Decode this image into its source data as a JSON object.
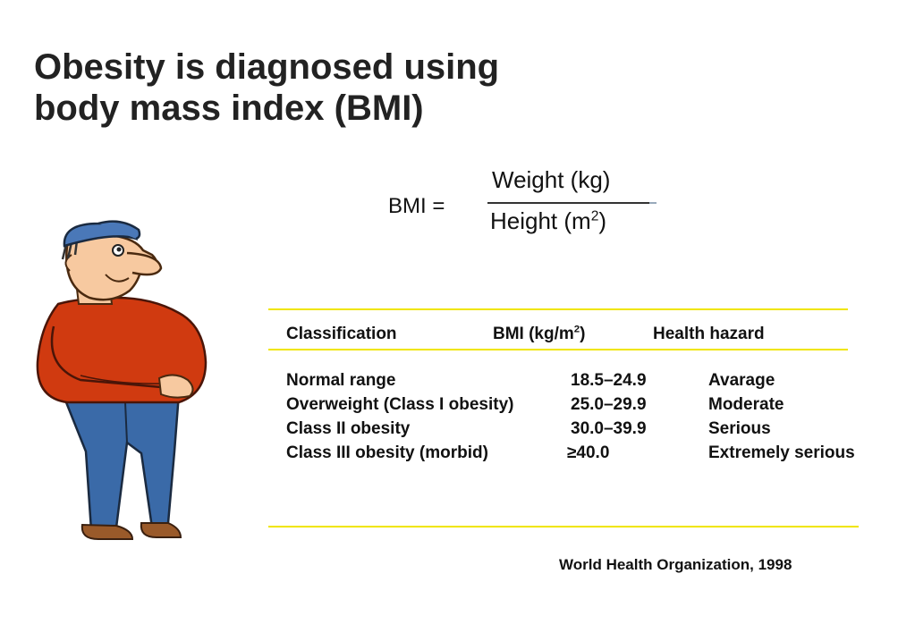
{
  "title": {
    "line1": "Obesity is diagnosed using",
    "line2": "body mass index  (BMI)"
  },
  "formula": {
    "lhs": "BMI =",
    "numerator": "Weight (kg)",
    "denominator_text": "Height (m",
    "denominator_sup": "2",
    "denominator_close": ")"
  },
  "table": {
    "headers": {
      "classification": "Classification",
      "bmi_text": "BMI (kg/m",
      "bmi_sup": "2",
      "bmi_close": ")",
      "hazard": "Health hazard"
    },
    "rows": [
      {
        "classification": "Normal range",
        "bmi": "18.5–24.9",
        "hazard": "Avarage"
      },
      {
        "classification": "Overweight (Class I obesity)",
        "bmi": "25.0–29.9",
        "hazard": "Moderate"
      },
      {
        "classification": "Class II obesity",
        "bmi": "30.0–39.9",
        "hazard": "Serious"
      },
      {
        "classification": "Class III obesity (morbid)",
        "bmi": "≥40.0",
        "hazard": "Extremely serious"
      }
    ]
  },
  "source": "World Health Organization, 1998",
  "colors": {
    "rule": "#f0e500",
    "shirt": "#d03a10",
    "pants": "#3a6aa8",
    "cap": "#4a78b8",
    "skin": "#f7c9a0",
    "shoes": "#9a5a2a"
  },
  "illustration": "cartoon-overweight-man"
}
